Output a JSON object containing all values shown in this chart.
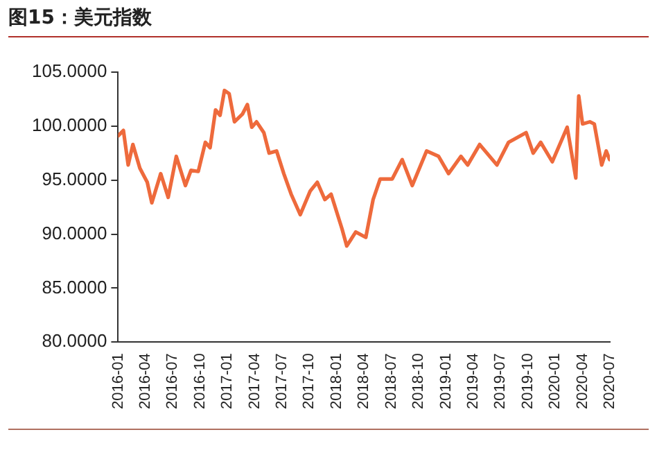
{
  "chart_data": {
    "type": "line",
    "title": "图15：美元指数",
    "x": [
      "2016-01-01",
      "2016-01-19",
      "2016-02-04",
      "2016-02-19",
      "2016-03-13",
      "2016-04-07",
      "2016-04-22",
      "2016-05-22",
      "2016-06-16",
      "2016-07-13",
      "2016-08-13",
      "2016-09-01",
      "2016-09-25",
      "2016-10-19",
      "2016-11-04",
      "2016-11-22",
      "2016-12-07",
      "2016-12-22",
      "2017-01-07",
      "2017-01-25",
      "2017-02-19",
      "2017-03-07",
      "2017-03-22",
      "2017-04-07",
      "2017-05-01",
      "2017-05-19",
      "2017-06-13",
      "2017-07-07",
      "2017-08-01",
      "2017-09-01",
      "2017-10-04",
      "2017-10-28",
      "2017-11-22",
      "2017-12-13",
      "2018-01-19",
      "2018-02-04",
      "2018-03-04",
      "2018-04-07",
      "2018-05-01",
      "2018-05-25",
      "2018-07-04",
      "2018-08-07",
      "2018-09-10",
      "2018-10-28",
      "2018-12-07",
      "2019-01-10",
      "2019-02-19",
      "2019-03-13",
      "2019-04-22",
      "2019-06-19",
      "2019-07-28",
      "2019-09-25",
      "2019-10-19",
      "2019-11-13",
      "2019-12-22",
      "2020-02-10",
      "2020-03-09",
      "2020-03-19",
      "2020-04-01",
      "2020-04-25",
      "2020-05-10",
      "2020-06-04",
      "2020-06-19",
      "2020-06-30"
    ],
    "series": [
      {
        "color": "#ee6a3c",
        "values": [
          99.1,
          99.6,
          96.4,
          98.3,
          96.1,
          94.8,
          92.9,
          95.6,
          93.4,
          97.2,
          94.5,
          95.9,
          95.8,
          98.5,
          98.0,
          101.5,
          101.0,
          103.3,
          103.0,
          100.4,
          101.1,
          102.0,
          99.9,
          100.4,
          99.4,
          97.5,
          97.7,
          95.6,
          93.7,
          91.8,
          94.0,
          94.8,
          93.2,
          93.7,
          90.5,
          88.9,
          90.2,
          89.7,
          93.2,
          95.1,
          95.1,
          96.9,
          94.5,
          97.7,
          97.2,
          95.6,
          97.2,
          96.4,
          98.3,
          96.4,
          98.5,
          99.4,
          97.5,
          98.5,
          96.7,
          99.9,
          95.2,
          102.8,
          100.2,
          100.4,
          100.2,
          96.4,
          97.7,
          96.9
        ]
      }
    ],
    "xlim": [
      "2016-01",
      "2020-07"
    ],
    "xticks": [
      "2016-01",
      "2016-04",
      "2016-07",
      "2016-10",
      "2017-01",
      "2017-04",
      "2017-07",
      "2017-10",
      "2018-01",
      "2018-04",
      "2018-07",
      "2018-10",
      "2019-01",
      "2019-04",
      "2019-07",
      "2019-10",
      "2020-01",
      "2020-04",
      "2020-07"
    ],
    "ylim": [
      80,
      105
    ],
    "yticks": [
      {
        "value": 80,
        "label": "80.0000"
      },
      {
        "value": 85,
        "label": "85.0000"
      },
      {
        "value": 90,
        "label": "90.0000"
      },
      {
        "value": 95,
        "label": "95.0000"
      },
      {
        "value": 100,
        "label": "100.0000"
      },
      {
        "value": 105,
        "label": "105.0000"
      }
    ],
    "grid": false,
    "legend": false,
    "marker": "none",
    "line_style": "solid"
  }
}
